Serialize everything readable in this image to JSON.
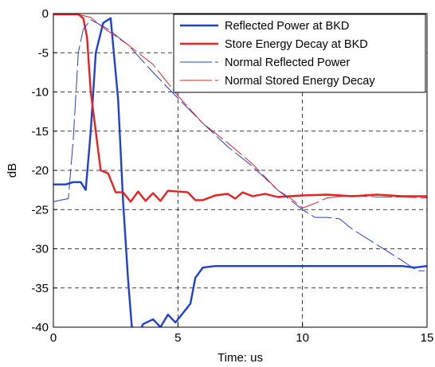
{
  "chart_data": {
    "type": "line",
    "xlabel": "Time: us",
    "ylabel": "dB",
    "xlim": [
      0,
      15
    ],
    "ylim": [
      -40,
      0
    ],
    "xticks": [
      0,
      5,
      10,
      15
    ],
    "yticks": [
      0,
      -5,
      -10,
      -15,
      -20,
      -25,
      -30,
      -35,
      -40
    ],
    "grid": "dashed",
    "legend_position": "top-right",
    "series": [
      {
        "name": "Reflected Power at BKD",
        "color": "#1f3fd6",
        "width": "thick",
        "dash": "solid",
        "points": [
          [
            0,
            -21.8
          ],
          [
            0.5,
            -21.8
          ],
          [
            0.8,
            -21.5
          ],
          [
            1.1,
            -21.5
          ],
          [
            1.3,
            -22.5
          ],
          [
            1.5,
            -15
          ],
          [
            1.7,
            -5
          ],
          [
            2.0,
            -1.2
          ],
          [
            2.3,
            -0.6
          ],
          [
            2.6,
            -11
          ],
          [
            2.8,
            -24
          ],
          [
            3.0,
            -34
          ],
          [
            3.15,
            -40
          ],
          [
            3.5,
            -40.3
          ],
          [
            3.6,
            -39.6
          ],
          [
            4.0,
            -39
          ],
          [
            4.3,
            -40
          ],
          [
            4.6,
            -38.4
          ],
          [
            4.9,
            -39.4
          ],
          [
            5.5,
            -37
          ],
          [
            5.7,
            -33.7
          ],
          [
            6.0,
            -32.4
          ],
          [
            6.5,
            -32.2
          ],
          [
            8,
            -32.2
          ],
          [
            10,
            -32.2
          ],
          [
            12,
            -32.2
          ],
          [
            14,
            -32.2
          ],
          [
            14.5,
            -32.4
          ],
          [
            15,
            -32.2
          ]
        ]
      },
      {
        "name": "Store Energy Decay at BKD",
        "color": "#e82020",
        "width": "thick",
        "dash": "solid",
        "points": [
          [
            0,
            -0.1
          ],
          [
            0.5,
            -0.1
          ],
          [
            1.0,
            -0.1
          ],
          [
            1.2,
            -0.6
          ],
          [
            1.35,
            -3
          ],
          [
            1.5,
            -10
          ],
          [
            1.7,
            -15
          ],
          [
            1.9,
            -20
          ],
          [
            2.2,
            -20.4
          ],
          [
            2.5,
            -22.8
          ],
          [
            2.8,
            -22.8
          ],
          [
            3.1,
            -24
          ],
          [
            3.4,
            -22.7
          ],
          [
            3.7,
            -23.9
          ],
          [
            4.0,
            -22.9
          ],
          [
            4.3,
            -23.9
          ],
          [
            4.6,
            -22.6
          ],
          [
            5.0,
            -22.7
          ],
          [
            5.4,
            -22.8
          ],
          [
            5.7,
            -23.8
          ],
          [
            6.0,
            -23.8
          ],
          [
            6.5,
            -23.2
          ],
          [
            7.0,
            -23
          ],
          [
            7.3,
            -23.6
          ],
          [
            7.6,
            -22.8
          ],
          [
            8,
            -23.3
          ],
          [
            8.5,
            -23
          ],
          [
            9,
            -23.4
          ],
          [
            10,
            -23.2
          ],
          [
            11,
            -23.1
          ],
          [
            12,
            -23.3
          ],
          [
            13,
            -23.1
          ],
          [
            14,
            -23.3
          ],
          [
            15,
            -23.3
          ]
        ]
      },
      {
        "name": "Normal Reflected Power",
        "color": "#1f3fd6",
        "width": "thin",
        "dash": "long-dash",
        "points": [
          [
            0,
            -24
          ],
          [
            0.3,
            -23.8
          ],
          [
            0.6,
            -23.6
          ],
          [
            0.8,
            -16
          ],
          [
            1.0,
            -5
          ],
          [
            1.2,
            -2
          ],
          [
            1.5,
            -0.8
          ],
          [
            1.8,
            -1.3
          ],
          [
            2.2,
            -2
          ],
          [
            3,
            -4
          ],
          [
            4,
            -7.5
          ],
          [
            5,
            -10.8
          ],
          [
            6,
            -14
          ],
          [
            7,
            -17
          ],
          [
            8,
            -19.5
          ],
          [
            9,
            -22.5
          ],
          [
            10,
            -25
          ],
          [
            10.5,
            -26
          ],
          [
            11,
            -26
          ],
          [
            11.5,
            -26.2
          ],
          [
            12,
            -27.5
          ],
          [
            13,
            -29.5
          ],
          [
            14,
            -31.5
          ],
          [
            14.6,
            -32.8
          ],
          [
            14.9,
            -32.8
          ]
        ]
      },
      {
        "name": "Normal Stored Energy Decay",
        "color": "#e82020",
        "width": "thin",
        "dash": "long-dash",
        "points": [
          [
            0,
            -0.1
          ],
          [
            1,
            -0.1
          ],
          [
            1.5,
            -0.5
          ],
          [
            2,
            -1.8
          ],
          [
            3,
            -4
          ],
          [
            4,
            -6.5
          ],
          [
            5,
            -10.5
          ],
          [
            6,
            -14
          ],
          [
            7,
            -16.5
          ],
          [
            8,
            -19.2
          ],
          [
            9,
            -22.5
          ],
          [
            9.5,
            -23.5
          ],
          [
            10,
            -24.8
          ],
          [
            10.5,
            -24.2
          ],
          [
            11,
            -23.5
          ],
          [
            12,
            -23.2
          ],
          [
            13,
            -23.4
          ],
          [
            14,
            -23.4
          ],
          [
            15,
            -23.5
          ]
        ]
      }
    ]
  }
}
